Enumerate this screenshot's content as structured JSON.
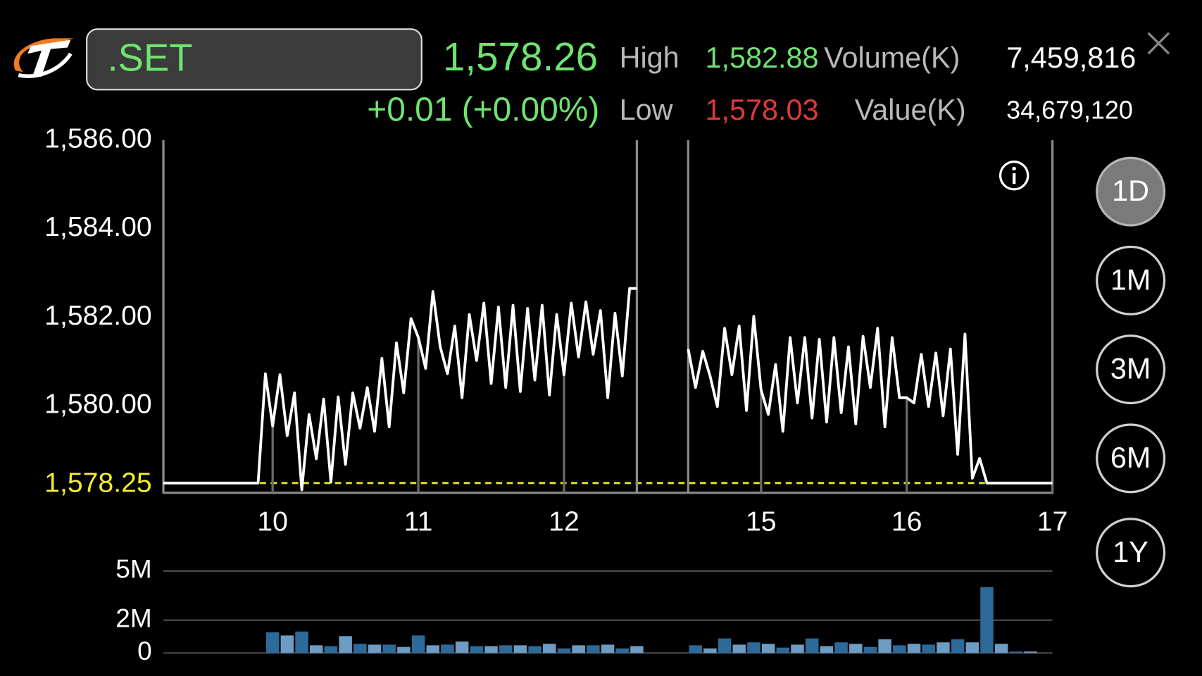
{
  "header": {
    "symbol": ".SET",
    "last": "1,578.26",
    "change": "+0.01 (+0.00%)",
    "high_label": "High",
    "high": "1,582.88",
    "low_label": "Low",
    "low": "1,578.03",
    "volume_label": "Volume(K)",
    "volume": "7,459,816",
    "value_label": "Value(K)",
    "value": "34,679,120"
  },
  "periods": [
    "1D",
    "1M",
    "3M",
    "6M",
    "1Y"
  ],
  "selected": "1D",
  "chart_data": [
    {
      "type": "line",
      "xlim": [
        9.25,
        17
      ],
      "xbreak": [
        12.5,
        14.5
      ],
      "xticks": [
        10,
        11,
        12,
        15,
        16,
        17
      ],
      "ylim": [
        1578.03,
        1586
      ],
      "yticks": [
        {
          "value": 1586,
          "label": "1,586.00"
        },
        {
          "value": 1584,
          "label": "1,584.00"
        },
        {
          "value": 1582,
          "label": "1,582.00"
        },
        {
          "value": 1580,
          "label": "1,580.00"
        }
      ],
      "reference": {
        "value": 1578.25,
        "label": "1,578.25",
        "color": "#f2ee2a"
      },
      "grid": false,
      "series": [
        {
          "color": "#ffffff",
          "x": [
            9.25,
            9.9,
            9.95,
            10,
            10.05,
            10.1,
            10.15,
            10.2,
            10.25,
            10.3,
            10.35,
            10.4,
            10.45,
            10.5,
            10.55,
            10.6,
            10.65,
            10.7,
            10.75,
            10.8,
            10.85,
            10.9,
            10.95,
            11,
            11.05,
            11.1,
            11.15,
            11.2,
            11.25,
            11.3,
            11.35,
            11.4,
            11.45,
            11.5,
            11.55,
            11.6,
            11.65,
            11.7,
            11.75,
            11.8,
            11.85,
            11.9,
            11.95,
            12,
            12.05,
            12.1,
            12.15,
            12.2,
            12.25,
            12.3,
            12.35,
            12.4,
            12.45,
            12.5,
            14.5,
            14.55,
            14.6,
            14.65,
            14.7,
            14.75,
            14.8,
            14.85,
            14.9,
            14.95,
            15,
            15.05,
            15.1,
            15.15,
            15.2,
            15.25,
            15.3,
            15.35,
            15.4,
            15.45,
            15.5,
            15.55,
            15.6,
            15.65,
            15.7,
            15.75,
            15.8,
            15.85,
            15.9,
            15.95,
            16,
            16.05,
            16.1,
            16.15,
            16.2,
            16.25,
            16.3,
            16.35,
            16.4,
            16.45,
            16.5,
            16.55,
            17
          ],
          "values": [
            1578.25,
            1578.25,
            1580.72,
            1579.54,
            1580.7,
            1579.32,
            1580.29,
            1578.1,
            1579.8,
            1578.8,
            1580.15,
            1578.27,
            1580.2,
            1578.67,
            1580.29,
            1579.49,
            1580.41,
            1579.42,
            1581.07,
            1579.52,
            1581.42,
            1580.29,
            1581.97,
            1581.54,
            1580.84,
            1582.58,
            1581.33,
            1580.72,
            1581.8,
            1580.18,
            1582.06,
            1581.02,
            1582.32,
            1580.5,
            1582.23,
            1580.41,
            1582.27,
            1580.32,
            1582.2,
            1580.58,
            1582.27,
            1580.24,
            1582.06,
            1580.7,
            1582.32,
            1581.1,
            1582.35,
            1581.16,
            1582.15,
            1580.18,
            1582.09,
            1580.67,
            1582.65,
            1582.65,
            1581.28,
            1580.41,
            1581.23,
            1580.67,
            1579.98,
            1581.75,
            1580.7,
            1581.8,
            1579.89,
            1582.02,
            1580.36,
            1579.8,
            1580.93,
            1579.42,
            1581.54,
            1580.06,
            1581.54,
            1579.72,
            1581.5,
            1579.63,
            1581.54,
            1579.84,
            1581.33,
            1579.59,
            1581.57,
            1580.41,
            1581.75,
            1579.52,
            1581.54,
            1580.18,
            1580.18,
            1580.06,
            1581.16,
            1579.98,
            1581.19,
            1579.77,
            1581.28,
            1578.9,
            1581.62,
            1578.36,
            1578.81,
            1578.25,
            1578.25
          ]
        }
      ]
    },
    {
      "type": "bar",
      "xlim": [
        9.25,
        17
      ],
      "xbreak": [
        12.5,
        14.5
      ],
      "ylim": [
        0,
        5000000
      ],
      "yticks": [
        {
          "value": 5000000,
          "label": "5M"
        },
        {
          "value": 2000000,
          "label": "2M"
        },
        0
      ],
      "grid": true,
      "colors": [
        "#2d6a99",
        "#6d9dc4"
      ],
      "x": [
        10,
        10.1,
        10.2,
        10.3,
        10.4,
        10.5,
        10.6,
        10.7,
        10.8,
        10.9,
        11,
        11.1,
        11.2,
        11.3,
        11.4,
        11.5,
        11.6,
        11.7,
        11.8,
        11.9,
        12,
        12.1,
        12.2,
        12.3,
        12.4,
        12.5,
        14.55,
        14.65,
        14.75,
        14.85,
        14.95,
        15.05,
        15.15,
        15.25,
        15.35,
        15.45,
        15.55,
        15.65,
        15.75,
        15.85,
        15.95,
        16.05,
        16.15,
        16.25,
        16.35,
        16.45,
        16.55,
        16.65,
        16.75,
        16.85
      ],
      "values": [
        1260000,
        1070000,
        1310000,
        470000,
        420000,
        1030000,
        560000,
        510000,
        510000,
        370000,
        1070000,
        470000,
        510000,
        700000,
        420000,
        420000,
        470000,
        470000,
        420000,
        560000,
        280000,
        470000,
        470000,
        510000,
        280000,
        420000,
        470000,
        280000,
        890000,
        510000,
        650000,
        560000,
        330000,
        510000,
        890000,
        420000,
        650000,
        560000,
        370000,
        840000,
        470000,
        560000,
        510000,
        650000,
        840000,
        650000,
        4020000,
        560000,
        90000,
        90000
      ]
    }
  ]
}
